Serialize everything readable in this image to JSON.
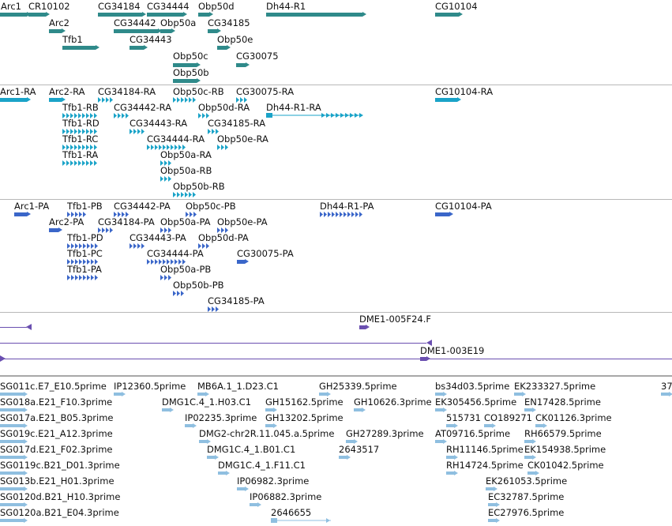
{
  "colors": {
    "genes": "#2f8a8a",
    "transcripts": "#1aa3c8",
    "proteins": "#3a66c9",
    "clones": "#6a4fb0",
    "ests": "#8fbfe0",
    "separator": "#b8b8b8"
  },
  "tracks": {
    "genes": [
      "Arc1",
      "CR10102",
      "CG34184",
      "CG34444",
      "Obp50d",
      "Dh44-R1",
      "CG10104",
      "Arc2",
      "CG34442",
      "Obp50a",
      "CG34185",
      "Tfb1",
      "CG34443",
      "Obp50e",
      "Obp50c",
      "CG30075",
      "Obp50b"
    ],
    "transcripts": [
      "Arc1-RA",
      "Arc2-RA",
      "CG34184-RA",
      "Obp50c-RB",
      "CG30075-RA",
      "CG10104-RA",
      "Tfb1-RB",
      "CG34442-RA",
      "Obp50d-RA",
      "Dh44-R1-RA",
      "Tfb1-RD",
      "CG34443-RA",
      "CG34185-RA",
      "Tfb1-RC",
      "CG34444-RA",
      "Obp50e-RA",
      "Tfb1-RA",
      "Obp50a-RA",
      "Obp50a-RB",
      "Obp50b-RB"
    ],
    "proteins": [
      "Arc1-PA",
      "Tfb1-PB",
      "CG34442-PA",
      "Obp50c-PB",
      "Dh44-R1-PA",
      "CG10104-PA",
      "Arc2-PA",
      "CG34184-PA",
      "Obp50a-PA",
      "Obp50e-PA",
      "Tfb1-PD",
      "CG34443-PA",
      "Obp50d-PA",
      "Tfb1-PC",
      "CG34444-PA",
      "CG30075-PA",
      "Tfb1-PA",
      "Obp50a-PB",
      "Obp50b-PB",
      "CG34185-PA"
    ],
    "clones": [
      "DME1-005F24.F",
      "DME1-003E19"
    ],
    "ests": [
      "SG011c.E7_E10.5prime",
      "IP12360.5prime",
      "MB6A.1_1.D23.C1",
      "GH25339.5prime",
      "bs34d03.5prime",
      "EK233327.5prime",
      "37",
      "SG018a.E21_F10.3prime",
      "DMG1C.4_1.H03.C1",
      "GH15162.5prime",
      "GH10626.3prime",
      "EK305456.5prime",
      "EN17428.5prime",
      "SG017a.E21_B05.3prime",
      "IP02235.3prime",
      "GH13202.5prime",
      "515731",
      "CO189271",
      "CK01126.3prime",
      "SG019c.E21_A12.3prime",
      "DMG2-chr2R.11.045.a.5prime",
      "GH27289.3prime",
      "AT09716.5prime",
      "RH66579.5prime",
      "SG017d.E21_F02.3prime",
      "DMG1C.4_1.B01.C1",
      "2643517",
      "RH11146.5prime",
      "EK154938.5prime",
      "SG0119c.B21_D01.3prime",
      "DMG1C.4_1.F11.C1",
      "RH14724.5prime",
      "CK01042.5prime",
      "SG013b.E21_H01.3prime",
      "IP06982.3prime",
      "EK261053.5prime",
      "SG0120d.B21_H10.3prime",
      "IP06882.3prime",
      "EC32787.5prime",
      "SG0120a.B21_E04.3prime",
      "2646655",
      "EC27976.5prime"
    ]
  }
}
